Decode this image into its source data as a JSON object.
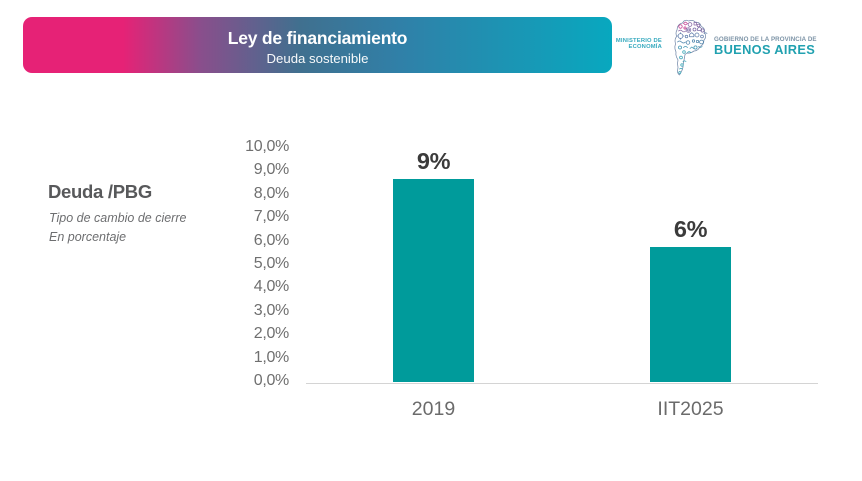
{
  "header": {
    "title": "Ley de financiamiento",
    "subtitle": "Deuda sostenible",
    "gradient_from": "#e62276",
    "gradient_to": "#08a8bf"
  },
  "branding": {
    "ministry_line1": "MINISTERIO DE",
    "ministry_line2": "ECONOMÍA",
    "ministry_color": "#35a9be",
    "logo_icon": "buenos-aires-province-doodle-map",
    "gov_line1": "GOBIERNO DE LA PROVINCIA DE",
    "gov_line2": "BUENOS AIRES",
    "gov_line1_color": "#7c93a6",
    "gov_line2_color": "#21a1b0"
  },
  "panel": {
    "title": "Deuda /PBG",
    "subtitle_line1": "Tipo de cambio de cierre",
    "subtitle_line2": "En porcentaje"
  },
  "chart_data": {
    "type": "bar",
    "title": "Deuda /PBG",
    "xlabel": "",
    "ylabel": "",
    "categories": [
      "2019",
      "IIT2025"
    ],
    "values": [
      9,
      6
    ],
    "bar_labels": [
      "9%",
      "6%"
    ],
    "plotted_values": [
      8.7,
      5.8
    ],
    "y_ticks": [
      "10,0%",
      "9,0%",
      "8,0%",
      "7,0%",
      "6,0%",
      "5,0%",
      "4,0%",
      "3,0%",
      "2,0%",
      "1,0%",
      "0,0%"
    ],
    "y_tick_values": [
      10,
      9,
      8,
      7,
      6,
      5,
      4,
      3,
      2,
      1,
      0
    ],
    "ylim": [
      0,
      10
    ],
    "bar_color": "#009b9b",
    "grid": false,
    "legend": false
  }
}
